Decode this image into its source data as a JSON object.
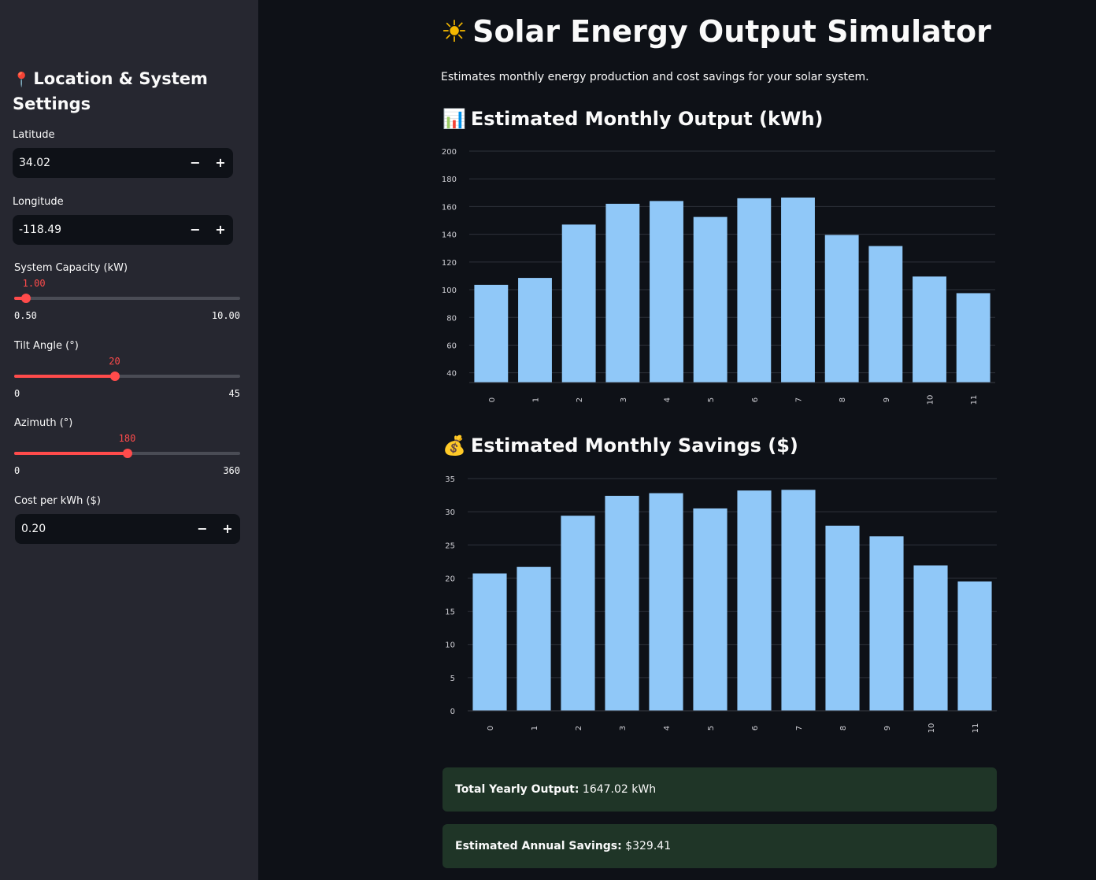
{
  "sidebar": {
    "title": "Location & System Settings",
    "title_icon": "pin-icon",
    "latitude": {
      "label": "Latitude",
      "value": "34.02",
      "minus": "−",
      "plus": "+"
    },
    "longitude": {
      "label": "Longitude",
      "value": "-118.49",
      "minus": "−",
      "plus": "+"
    },
    "capacity": {
      "label": "System Capacity (kW)",
      "value": "1.00",
      "min": "0.50",
      "max": "10.00",
      "fraction": 0.0526
    },
    "tilt": {
      "label": "Tilt Angle (°)",
      "value": "20",
      "min": "0",
      "max": "45",
      "fraction": 0.4444
    },
    "azimuth": {
      "label": "Azimuth (°)",
      "value": "180",
      "min": "0",
      "max": "360",
      "fraction": 0.5
    },
    "cost": {
      "label": "Cost per kWh ($)",
      "value": "0.20",
      "minus": "−",
      "plus": "+"
    }
  },
  "main": {
    "title": "Solar Energy Output Simulator",
    "title_icon": "sun-icon",
    "subtitle": "Estimates monthly energy production and cost savings for your solar system.",
    "output_heading": "Estimated Monthly Output (kWh)",
    "output_icon": "bar-chart-icon",
    "savings_heading": "Estimated Monthly Savings ($)",
    "savings_icon": "money-bag-icon",
    "total_output_label": "Total Yearly Output:",
    "total_output_value": "1647.02 kWh",
    "annual_savings_label": "Estimated Annual Savings:",
    "annual_savings_value": "$329.41"
  },
  "colors": {
    "bar": "#90c8f8",
    "accent": "#ff4b4b",
    "info_bg": "#1f3527"
  },
  "chart_data": [
    {
      "type": "bar",
      "categories": [
        "0",
        "1",
        "2",
        "3",
        "4",
        "5",
        "6",
        "7",
        "8",
        "9",
        "10",
        "11"
      ],
      "values": [
        103.5,
        108.5,
        147,
        162,
        164,
        152.5,
        166,
        166.5,
        139.5,
        131.5,
        109.5,
        97.5
      ],
      "yticks": [
        40,
        60,
        80,
        100,
        120,
        140,
        160,
        180,
        200
      ],
      "ylim": [
        33,
        200
      ],
      "grid": true
    },
    {
      "type": "bar",
      "categories": [
        "0",
        "1",
        "2",
        "3",
        "4",
        "5",
        "6",
        "7",
        "8",
        "9",
        "10",
        "11"
      ],
      "values": [
        20.7,
        21.7,
        29.4,
        32.4,
        32.8,
        30.5,
        33.2,
        33.3,
        27.9,
        26.3,
        21.9,
        19.5
      ],
      "yticks": [
        0,
        5,
        10,
        15,
        20,
        25,
        30,
        35
      ],
      "ylim": [
        0,
        35
      ],
      "grid": true
    }
  ]
}
